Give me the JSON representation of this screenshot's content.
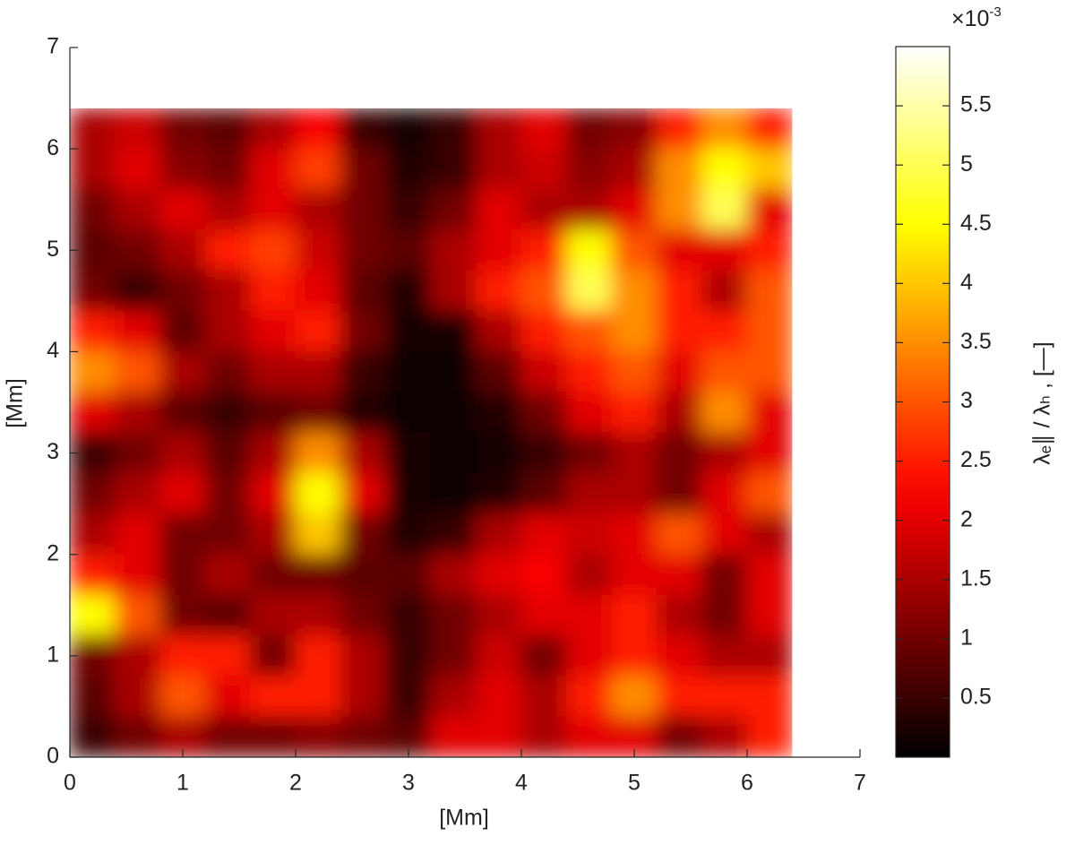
{
  "chart_data": {
    "type": "heatmap",
    "xlabel": "[Mm]",
    "ylabel": "[Mm]",
    "xlim": [
      0,
      7
    ],
    "ylim": [
      0,
      7
    ],
    "xticks": [
      0,
      1,
      2,
      3,
      4,
      5,
      6,
      7
    ],
    "yticks": [
      0,
      1,
      2,
      3,
      4,
      5,
      6,
      7
    ],
    "x": [
      0.2,
      0.6,
      1.0,
      1.4,
      1.8,
      2.2,
      2.6,
      3.0,
      3.4,
      3.8,
      4.2,
      4.6,
      5.0,
      5.4,
      5.8,
      6.2
    ],
    "y": [
      6.2,
      5.8,
      5.4,
      5.0,
      4.6,
      4.2,
      3.8,
      3.4,
      3.0,
      2.6,
      2.2,
      1.8,
      1.4,
      1.0,
      0.6,
      0.2
    ],
    "values": [
      [
        1.5,
        1.8,
        1.0,
        0.8,
        1.5,
        2.2,
        0.5,
        0.2,
        0.5,
        1.5,
        2.0,
        1.0,
        1.2,
        2.5,
        3.5,
        2.5
      ],
      [
        1.5,
        2.0,
        1.2,
        1.0,
        2.0,
        2.8,
        1.0,
        0.3,
        0.5,
        1.5,
        1.8,
        1.2,
        1.5,
        3.5,
        4.5,
        4.0
      ],
      [
        1.0,
        1.5,
        2.0,
        1.5,
        2.0,
        1.5,
        1.0,
        0.5,
        1.0,
        2.0,
        1.5,
        1.5,
        2.0,
        3.5,
        5.0,
        2.0
      ],
      [
        0.8,
        1.0,
        1.5,
        2.5,
        2.8,
        1.8,
        1.0,
        0.8,
        1.5,
        2.0,
        2.5,
        4.5,
        3.0,
        2.0,
        2.0,
        2.5
      ],
      [
        1.0,
        0.5,
        1.0,
        1.5,
        2.5,
        2.0,
        0.8,
        0.3,
        1.5,
        2.5,
        3.0,
        5.0,
        3.5,
        2.5,
        1.5,
        3.0
      ],
      [
        2.5,
        2.0,
        0.8,
        1.5,
        2.0,
        2.5,
        1.0,
        0.2,
        0.2,
        1.5,
        2.5,
        3.0,
        3.5,
        2.5,
        2.5,
        3.0
      ],
      [
        3.5,
        3.0,
        1.5,
        1.0,
        1.5,
        1.5,
        0.5,
        0.1,
        0.1,
        0.8,
        1.8,
        2.5,
        3.0,
        2.0,
        3.0,
        3.0
      ],
      [
        2.0,
        1.5,
        0.8,
        0.5,
        0.8,
        1.0,
        0.3,
        0.1,
        0.1,
        0.3,
        1.0,
        2.0,
        2.5,
        1.5,
        3.5,
        2.0
      ],
      [
        0.5,
        1.0,
        1.5,
        0.8,
        1.5,
        3.5,
        1.5,
        0.2,
        0.1,
        0.2,
        0.5,
        1.0,
        1.5,
        1.0,
        1.5,
        2.0
      ],
      [
        1.0,
        1.5,
        2.0,
        1.0,
        2.0,
        4.5,
        2.0,
        0.2,
        0.1,
        0.3,
        0.8,
        1.5,
        1.5,
        1.0,
        2.0,
        3.0
      ],
      [
        1.5,
        2.0,
        1.0,
        1.0,
        1.5,
        4.0,
        1.0,
        0.3,
        0.5,
        1.5,
        2.0,
        1.8,
        2.0,
        3.0,
        2.0,
        1.5
      ],
      [
        2.5,
        2.0,
        1.0,
        1.5,
        1.0,
        1.0,
        0.8,
        0.8,
        1.5,
        2.0,
        2.2,
        1.5,
        2.0,
        2.0,
        1.0,
        2.0
      ],
      [
        4.5,
        3.0,
        1.0,
        0.8,
        1.5,
        1.5,
        1.0,
        0.5,
        1.0,
        1.5,
        2.0,
        2.0,
        2.5,
        1.5,
        1.0,
        2.0
      ],
      [
        1.0,
        1.5,
        2.5,
        2.5,
        1.0,
        2.5,
        1.5,
        0.5,
        1.0,
        1.8,
        1.0,
        2.0,
        2.5,
        2.0,
        1.5,
        1.5
      ],
      [
        0.8,
        1.5,
        3.0,
        2.0,
        2.5,
        2.5,
        1.5,
        0.5,
        1.5,
        2.0,
        1.5,
        2.5,
        3.5,
        2.5,
        2.5,
        2.5
      ],
      [
        0.5,
        1.0,
        1.5,
        1.0,
        1.0,
        1.2,
        1.0,
        0.8,
        2.0,
        2.0,
        1.5,
        2.0,
        2.0,
        1.0,
        1.5,
        2.5
      ]
    ],
    "colormap": "hot",
    "colorbar": {
      "label": "λₑ∥ / λₕ , [—]",
      "clim": [
        0,
        6
      ],
      "ticks": [
        0.5,
        1,
        1.5,
        2,
        2.5,
        3,
        3.5,
        4,
        4.5,
        5,
        5.5
      ],
      "scale_base": "×10",
      "scale_exponent": "-3"
    }
  }
}
